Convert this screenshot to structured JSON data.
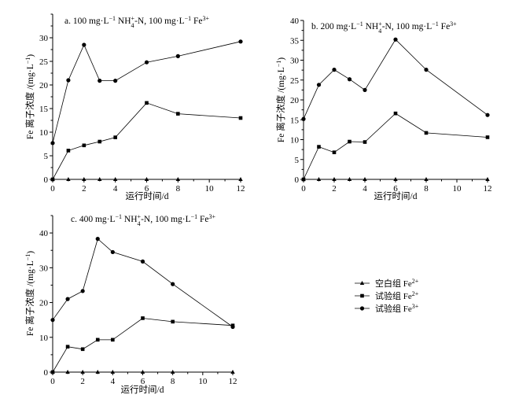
{
  "chart_data": [
    {
      "type": "line",
      "panel": "a",
      "title": {
        "prefix": "a. 100 mg·L",
        "sup1": "−1",
        "mid1": " NH",
        "sub1": "4",
        "sup2": "+",
        "mid2": "-N, 100 mg·L",
        "sup3": "−1",
        "mid3": " Fe",
        "sup4": "3+"
      },
      "xlabel": "运行时间/d",
      "ylabel": {
        "main": "Fe 离子浓度 /(mg·L",
        "sup": "−1",
        "end": ")"
      },
      "xlim": [
        0,
        12
      ],
      "ylim": [
        0,
        35
      ],
      "xticks": [
        0,
        2,
        4,
        6,
        8,
        10,
        12
      ],
      "yticks": [
        0,
        5,
        10,
        15,
        20,
        25,
        30
      ],
      "series": [
        {
          "name": "空白组 Fe2+",
          "marker": "triangle",
          "x": [
            0,
            1,
            2,
            3,
            4,
            6,
            8,
            12
          ],
          "values": [
            0,
            0,
            0,
            0,
            0,
            0,
            0,
            0
          ]
        },
        {
          "name": "试验组 Fe2+",
          "marker": "square",
          "x": [
            0,
            1,
            2,
            3,
            4,
            6,
            8,
            12
          ],
          "values": [
            0,
            6.1,
            7.2,
            8,
            8.9,
            16.2,
            13.9,
            13
          ]
        },
        {
          "name": "试验组 Fe3+",
          "marker": "circle",
          "x": [
            0,
            1,
            2,
            3,
            4,
            6,
            8,
            12
          ],
          "values": [
            7.7,
            21,
            28.5,
            20.9,
            20.9,
            24.8,
            26.1,
            29.2
          ]
        }
      ]
    },
    {
      "type": "line",
      "panel": "b",
      "title": {
        "prefix": "b. 200 mg·L",
        "sup1": "−1",
        "mid1": " NH",
        "sub1": "4",
        "sup2": "+",
        "mid2": "-N, 100 mg·L",
        "sup3": "−1",
        "mid3": " Fe",
        "sup4": "3+"
      },
      "xlabel": "运行时间/d",
      "ylabel": {
        "main": "Fe 离子浓度 /(mg·L",
        "sup": "−1",
        "end": ")"
      },
      "xlim": [
        0,
        12
      ],
      "ylim": [
        0,
        40
      ],
      "xticks": [
        0,
        2,
        4,
        6,
        8,
        10,
        12
      ],
      "yticks": [
        0,
        5,
        10,
        15,
        20,
        25,
        30,
        35,
        40
      ],
      "series": [
        {
          "name": "空白组 Fe2+",
          "marker": "triangle",
          "x": [
            0,
            1,
            2,
            3,
            4,
            6,
            8,
            12
          ],
          "values": [
            0,
            0,
            0,
            0,
            0,
            0,
            0,
            0
          ]
        },
        {
          "name": "试验组 Fe2+",
          "marker": "square",
          "x": [
            0,
            1,
            2,
            3,
            4,
            6,
            8,
            12
          ],
          "values": [
            0,
            8.2,
            6.8,
            9.5,
            9.4,
            16.6,
            11.7,
            10.6
          ]
        },
        {
          "name": "试验组 Fe3+",
          "marker": "circle",
          "x": [
            0,
            1,
            2,
            3,
            4,
            6,
            8,
            12
          ],
          "values": [
            15.2,
            23.8,
            27.6,
            25.2,
            22.5,
            35.2,
            27.6,
            16.2
          ]
        }
      ]
    },
    {
      "type": "line",
      "panel": "c",
      "title": {
        "prefix": "c. 400 mg·L",
        "sup1": "−1",
        "mid1": " NH",
        "sub1": "4",
        "sup2": "+",
        "mid2": "-N, 100 mg·L",
        "sup3": "−1",
        "mid3": " Fe",
        "sup4": "3+"
      },
      "xlabel": "运行时间/d",
      "ylabel": {
        "main": "Fe 离子浓度 /(mg·L",
        "sup": "−1",
        "end": ")"
      },
      "xlim": [
        0,
        12
      ],
      "ylim": [
        0,
        45
      ],
      "xticks": [
        0,
        2,
        4,
        6,
        8,
        10,
        12
      ],
      "yticks": [
        0,
        10,
        20,
        30,
        40
      ],
      "series": [
        {
          "name": "空白组 Fe2+",
          "marker": "triangle",
          "x": [
            0,
            1,
            2,
            3,
            4,
            6,
            8,
            12
          ],
          "values": [
            0,
            0,
            0,
            0,
            0,
            0,
            0,
            0
          ]
        },
        {
          "name": "试验组 Fe2+",
          "marker": "square",
          "x": [
            0,
            1,
            2,
            3,
            4,
            6,
            8,
            12
          ],
          "values": [
            0,
            7.3,
            6.6,
            9.3,
            9.3,
            15.5,
            14.5,
            13.4
          ]
        },
        {
          "name": "试验组 Fe3+",
          "marker": "circle",
          "x": [
            0,
            1,
            2,
            3,
            4,
            6,
            8,
            12
          ],
          "values": [
            15,
            21,
            23.3,
            38.3,
            34.5,
            31.8,
            25.3,
            13
          ]
        }
      ]
    }
  ],
  "legend": [
    {
      "marker": "triangle",
      "label": "空白组 Fe",
      "sup": "2+"
    },
    {
      "marker": "square",
      "label": "试验组 Fe",
      "sup": "2+"
    },
    {
      "marker": "circle",
      "label": "试验组 Fe",
      "sup": "3+"
    }
  ]
}
